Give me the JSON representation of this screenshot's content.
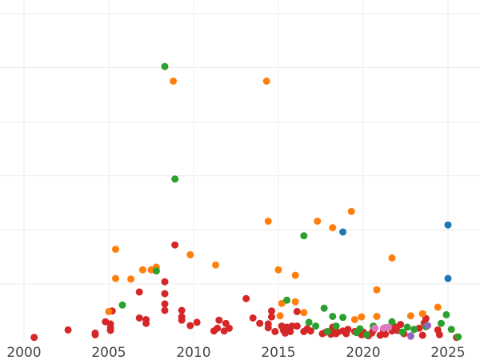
{
  "chart_data": {
    "type": "scatter",
    "title": "",
    "xlabel": "",
    "ylabel": "",
    "xlim": [
      2000,
      2026.5
    ],
    "ylim": [
      0,
      62
    ],
    "x_ticks": [
      2000,
      2005,
      2010,
      2015,
      2020,
      2025
    ],
    "x_tick_labels": [
      "2000",
      "2005",
      "2010",
      "2015",
      "2020",
      "2025"
    ],
    "y_grid": [
      10,
      20,
      30,
      40,
      50,
      60
    ],
    "grid": true,
    "legend": "none",
    "series": [
      {
        "color": "#d62728",
        "points": [
          [
            2000.6,
            0.1
          ],
          [
            2002.6,
            1.5
          ],
          [
            2004.2,
            0.6
          ],
          [
            2004.2,
            0.9
          ],
          [
            2004.8,
            3.0
          ],
          [
            2005.1,
            1.4
          ],
          [
            2005.1,
            1.9
          ],
          [
            2005.1,
            2.6
          ],
          [
            2005.2,
            5.0
          ],
          [
            2006.8,
            3.7
          ],
          [
            2006.8,
            8.5
          ],
          [
            2007.2,
            2.7
          ],
          [
            2007.2,
            3.4
          ],
          [
            2008.3,
            5.1
          ],
          [
            2008.3,
            6.3
          ],
          [
            2008.3,
            8.2
          ],
          [
            2008.3,
            10.4
          ],
          [
            2008.9,
            17.2
          ],
          [
            2009.3,
            3.3
          ],
          [
            2009.3,
            3.9
          ],
          [
            2009.3,
            5.1
          ],
          [
            2009.8,
            2.3
          ],
          [
            2010.2,
            2.9
          ],
          [
            2011.2,
            1.3
          ],
          [
            2011.4,
            1.8
          ],
          [
            2011.5,
            3.3
          ],
          [
            2011.8,
            1.3
          ],
          [
            2011.9,
            2.7
          ],
          [
            2012.1,
            1.8
          ],
          [
            2013.1,
            7.3
          ],
          [
            2013.5,
            3.7
          ],
          [
            2013.9,
            2.7
          ],
          [
            2014.4,
            1.9
          ],
          [
            2014.4,
            2.6
          ],
          [
            2014.6,
            3.9
          ],
          [
            2014.6,
            5.0
          ],
          [
            2014.8,
            1.2
          ],
          [
            2015.2,
            2.2
          ],
          [
            2015.3,
            1.4
          ],
          [
            2015.4,
            0.9
          ],
          [
            2015.5,
            2.0
          ],
          [
            2015.7,
            1.2
          ],
          [
            2015.8,
            2.2
          ],
          [
            2016.1,
            2.2
          ],
          [
            2016.1,
            4.9
          ],
          [
            2016.5,
            1.2
          ],
          [
            2016.7,
            1.7
          ],
          [
            2016.9,
            1.3
          ],
          [
            2017.6,
            0.8
          ],
          [
            2017.8,
            1.1
          ],
          [
            2018.1,
            0.7
          ],
          [
            2018.2,
            2.0
          ],
          [
            2018.3,
            1.3
          ],
          [
            2018.4,
            0.8
          ],
          [
            2018.5,
            1.1
          ],
          [
            2018.8,
            1.3
          ],
          [
            2019.0,
            0.8
          ],
          [
            2019.1,
            1.6
          ],
          [
            2019.5,
            1.2
          ],
          [
            2019.9,
            0.6
          ],
          [
            2020.0,
            1.1
          ],
          [
            2020.3,
            0.4
          ],
          [
            2020.5,
            0.9
          ],
          [
            2020.6,
            1.4
          ],
          [
            2021.0,
            0.5
          ],
          [
            2021.2,
            1.3
          ],
          [
            2021.3,
            0.7
          ],
          [
            2021.7,
            1.3
          ],
          [
            2021.8,
            2.2
          ],
          [
            2022.0,
            1.4
          ],
          [
            2022.2,
            2.5
          ],
          [
            2022.4,
            0.8
          ],
          [
            2023.3,
            1.8
          ],
          [
            2023.5,
            0.5
          ],
          [
            2023.6,
            2.8
          ],
          [
            2023.7,
            3.6
          ],
          [
            2024.4,
            1.5
          ],
          [
            2024.5,
            0.6
          ],
          [
            2025.5,
            0.1
          ]
        ]
      },
      {
        "color": "#ff7f0e",
        "points": [
          [
            2005.0,
            4.9
          ],
          [
            2005.4,
            16.4
          ],
          [
            2005.4,
            11.0
          ],
          [
            2006.3,
            10.9
          ],
          [
            2007.0,
            12.6
          ],
          [
            2007.5,
            12.6
          ],
          [
            2007.8,
            13.1
          ],
          [
            2008.8,
            47.5
          ],
          [
            2009.8,
            15.4
          ],
          [
            2011.3,
            13.5
          ],
          [
            2014.3,
            47.5
          ],
          [
            2014.4,
            21.6
          ],
          [
            2015.0,
            12.6
          ],
          [
            2015.1,
            4.1
          ],
          [
            2015.2,
            6.4
          ],
          [
            2016.0,
            11.6
          ],
          [
            2016.0,
            6.7
          ],
          [
            2016.5,
            4.7
          ],
          [
            2017.3,
            21.6
          ],
          [
            2018.2,
            20.4
          ],
          [
            2019.3,
            23.4
          ],
          [
            2019.5,
            3.4
          ],
          [
            2019.9,
            3.9
          ],
          [
            2020.8,
            8.9
          ],
          [
            2020.8,
            4.0
          ],
          [
            2021.7,
            14.8
          ],
          [
            2022.8,
            4.1
          ],
          [
            2023.5,
            4.5
          ],
          [
            2024.4,
            5.7
          ]
        ]
      },
      {
        "color": "#2ca02c",
        "points": [
          [
            2005.8,
            6.1
          ],
          [
            2007.8,
            12.4
          ],
          [
            2008.3,
            50.2
          ],
          [
            2008.9,
            29.4
          ],
          [
            2015.5,
            7.0
          ],
          [
            2016.5,
            18.9
          ],
          [
            2016.8,
            2.9
          ],
          [
            2017.2,
            2.2
          ],
          [
            2017.7,
            5.5
          ],
          [
            2017.9,
            1.2
          ],
          [
            2018.2,
            4.0
          ],
          [
            2018.4,
            2.2
          ],
          [
            2018.8,
            3.8
          ],
          [
            2019.6,
            1.0
          ],
          [
            2019.8,
            1.7
          ],
          [
            2020.2,
            0.6
          ],
          [
            2020.6,
            2.2
          ],
          [
            2021.3,
            1.9
          ],
          [
            2021.7,
            3.0
          ],
          [
            2022.3,
            1.1
          ],
          [
            2022.6,
            2.0
          ],
          [
            2023.0,
            1.6
          ],
          [
            2023.7,
            2.1
          ],
          [
            2024.6,
            2.7
          ],
          [
            2024.9,
            4.3
          ],
          [
            2025.2,
            1.6
          ],
          [
            2025.6,
            0.2
          ]
        ]
      },
      {
        "color": "#1f77b4",
        "points": [
          [
            2018.8,
            19.6
          ],
          [
            2025.0,
            20.9
          ],
          [
            2025.0,
            11.0
          ]
        ]
      },
      {
        "color": "#e377c2",
        "points": [
          [
            2020.7,
            1.8
          ],
          [
            2021.2,
            1.8
          ],
          [
            2021.5,
            2.0
          ],
          [
            2022.8,
            0.3
          ]
        ]
      },
      {
        "color": "#9467bd",
        "points": [
          [
            2022.8,
            0.4
          ],
          [
            2023.8,
            2.3
          ]
        ]
      }
    ]
  }
}
